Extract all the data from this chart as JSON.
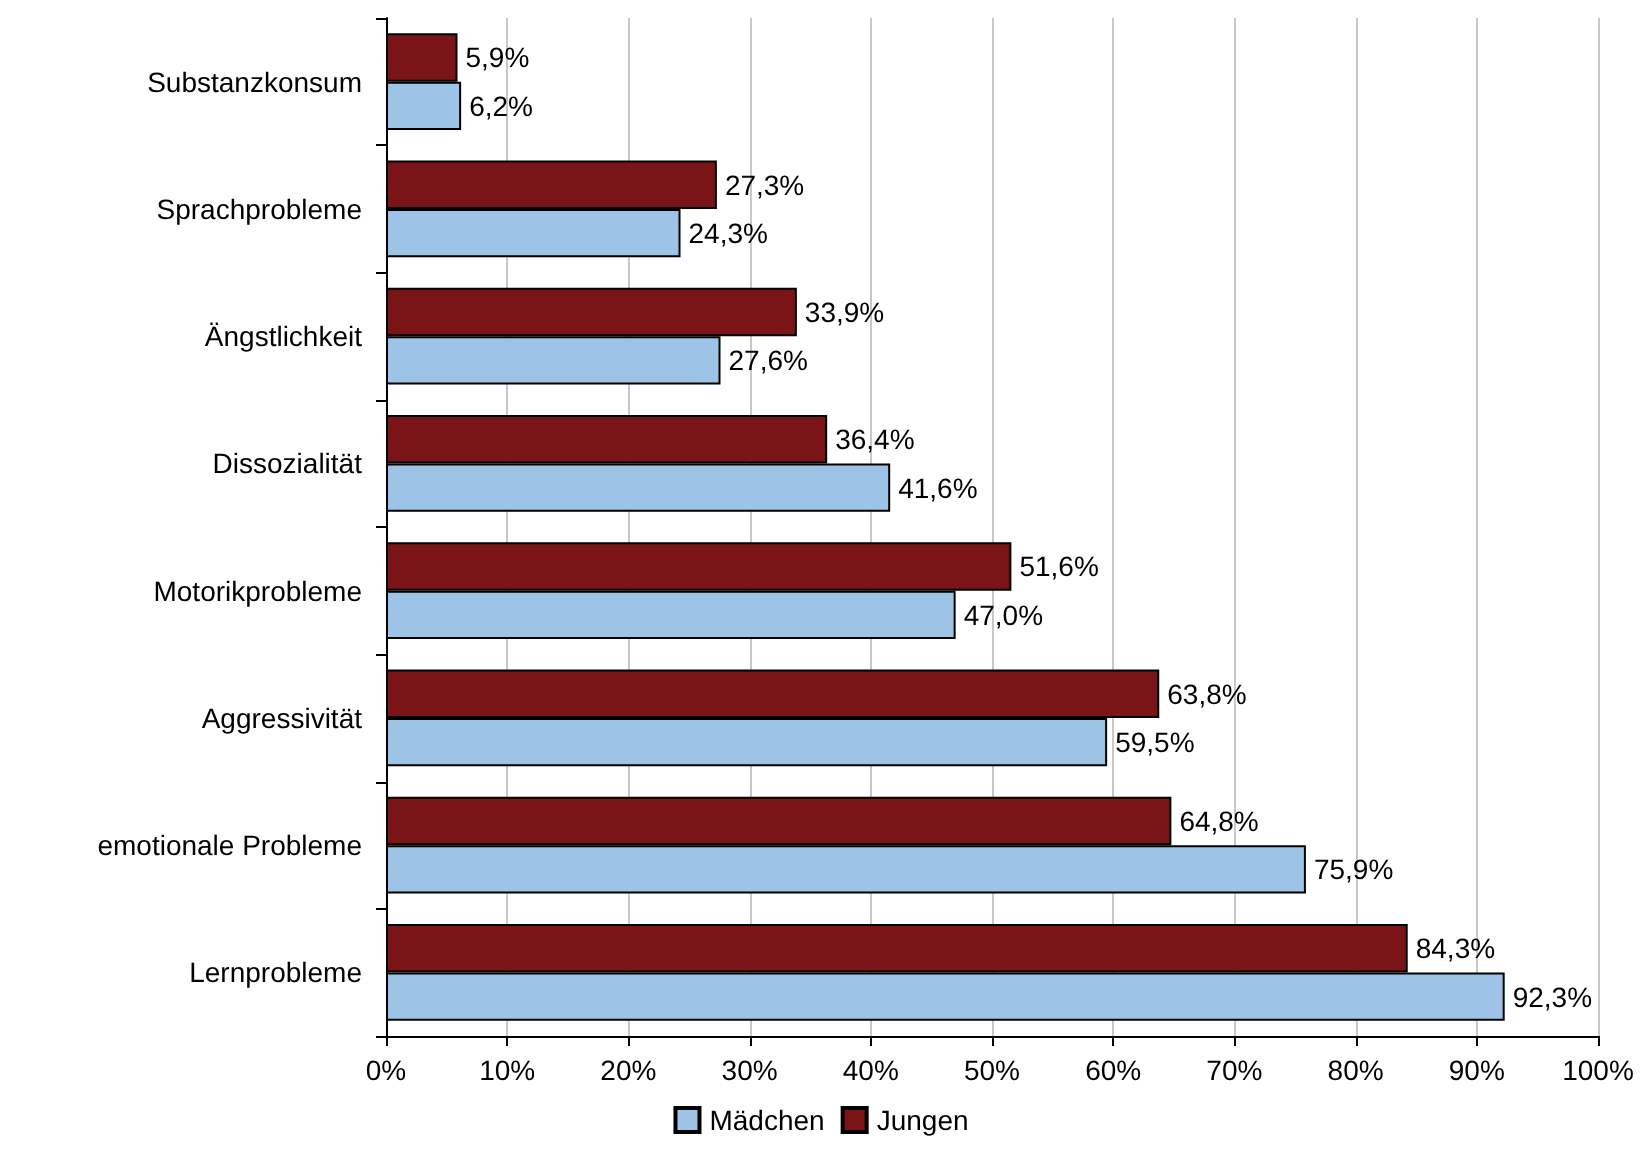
{
  "chart_data": {
    "type": "bar",
    "orientation": "horizontal",
    "categories": [
      "Substanzkonsum",
      "Sprachprobleme",
      "Ängstlichkeit",
      "Dissozialität",
      "Motorikprobleme",
      "Aggressivität",
      "emotionale Probleme",
      "Lernprobleme"
    ],
    "series": [
      {
        "name": "Mädchen",
        "color": "#9dc3e6",
        "values": [
          6.2,
          24.3,
          27.6,
          41.6,
          47.0,
          59.5,
          75.9,
          92.3
        ],
        "value_labels": [
          "6,2%",
          "24,3%",
          "27,6%",
          "41,6%",
          "47,0%",
          "59,5%",
          "75,9%",
          "92,3%"
        ]
      },
      {
        "name": "Jungen",
        "color": "#7b1416",
        "values": [
          5.9,
          27.3,
          33.9,
          36.4,
          51.6,
          63.8,
          64.8,
          84.3
        ],
        "value_labels": [
          "5,9%",
          "27,3%",
          "33,9%",
          "36,4%",
          "51,6%",
          "63,8%",
          "64,8%",
          "84,3%"
        ]
      }
    ],
    "xlim": [
      0,
      100
    ],
    "xticks": [
      {
        "value": 0,
        "label": "0%"
      },
      {
        "value": 10,
        "label": "10%"
      },
      {
        "value": 20,
        "label": "20%"
      },
      {
        "value": 30,
        "label": "30%"
      },
      {
        "value": 40,
        "label": "40%"
      },
      {
        "value": 50,
        "label": "50%"
      },
      {
        "value": 60,
        "label": "60%"
      },
      {
        "value": 70,
        "label": "70%"
      },
      {
        "value": 80,
        "label": "80%"
      },
      {
        "value": 90,
        "label": "90%"
      },
      {
        "value": 100,
        "label": "100%"
      }
    ],
    "grid": "x",
    "legend": "bottom"
  }
}
